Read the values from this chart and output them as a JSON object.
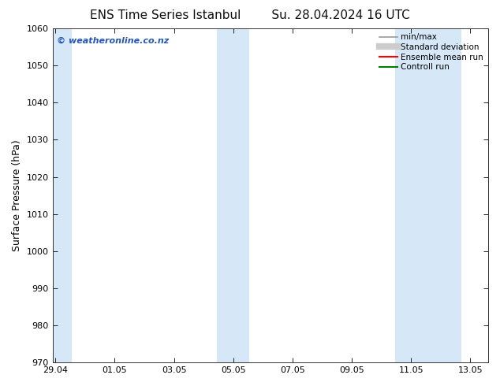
{
  "title_left": "ENS Time Series Istanbul",
  "title_right": "Su. 28.04.2024 16 UTC",
  "ylabel": "Surface Pressure (hPa)",
  "ylim": [
    970,
    1060
  ],
  "yticks": [
    970,
    980,
    990,
    1000,
    1010,
    1020,
    1030,
    1040,
    1050,
    1060
  ],
  "xtick_labels": [
    "29.04",
    "01.05",
    "03.05",
    "05.05",
    "07.05",
    "09.05",
    "11.05",
    "13.05"
  ],
  "xtick_positions": [
    0,
    2,
    4,
    6,
    8,
    10,
    12,
    14
  ],
  "xlim": [
    -0.1,
    14.6
  ],
  "shaded_bands": [
    {
      "x_start": -0.1,
      "x_end": 0.55
    },
    {
      "x_start": 5.45,
      "x_end": 6.55
    },
    {
      "x_start": 11.45,
      "x_end": 13.7
    }
  ],
  "band_color": "#d6e8f7",
  "watermark_text": "© weatheronline.co.nz",
  "watermark_color": "#2255bb",
  "background_color": "#ffffff",
  "legend_items": [
    {
      "label": "min/max",
      "color": "#999999",
      "lw": 1.2,
      "marker": "none"
    },
    {
      "label": "Standard deviation",
      "color": "#cccccc",
      "lw": 6.0,
      "marker": "none"
    },
    {
      "label": "Ensemble mean run",
      "color": "#ff0000",
      "lw": 1.5,
      "marker": "none"
    },
    {
      "label": "Controll run",
      "color": "#008000",
      "lw": 1.5,
      "marker": "none"
    }
  ],
  "title_fontsize": 11,
  "tick_fontsize": 8,
  "ylabel_fontsize": 9,
  "watermark_fontsize": 8,
  "legend_fontsize": 7.5
}
